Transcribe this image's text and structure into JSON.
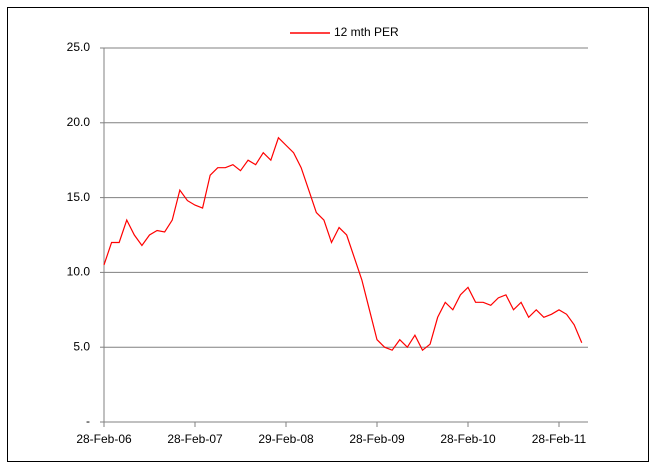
{
  "chart_data": {
    "type": "line",
    "categories": [
      "28-Feb-06",
      null,
      null,
      null,
      null,
      null,
      null,
      null,
      null,
      null,
      null,
      null,
      "28-Feb-07",
      null,
      null,
      null,
      null,
      null,
      null,
      null,
      null,
      null,
      null,
      null,
      "29-Feb-08",
      null,
      null,
      null,
      null,
      null,
      null,
      null,
      null,
      null,
      null,
      null,
      "28-Feb-09",
      null,
      null,
      null,
      null,
      null,
      null,
      null,
      null,
      null,
      null,
      null,
      "28-Feb-10",
      null,
      null,
      null,
      null,
      null,
      null,
      null,
      null,
      null,
      null,
      null,
      "28-Feb-11",
      null,
      null,
      null
    ],
    "series": [
      {
        "name": "12 mth PER",
        "color": "#ff0000",
        "values": [
          10.5,
          12,
          12,
          13.5,
          12.5,
          11.8,
          12.5,
          12.8,
          12.7,
          13.5,
          15.5,
          14.8,
          14.5,
          14.3,
          16.5,
          17,
          17,
          17.2,
          16.8,
          17.5,
          17.2,
          18,
          17.5,
          19,
          18.5,
          18,
          17,
          15.5,
          14,
          13.5,
          12,
          13,
          12.5,
          11,
          9.5,
          7.5,
          5.5,
          5,
          4.8,
          5.5,
          5,
          5.8,
          4.8,
          5.2,
          7,
          8,
          7.5,
          8.5,
          9,
          8,
          8,
          7.8,
          8.3,
          8.5,
          7.5,
          8,
          7,
          7.5,
          7,
          7.2,
          7.5,
          7.2,
          6.5,
          5.3
        ]
      }
    ],
    "ylim": [
      0,
      25
    ],
    "yticks": [
      {
        "value": 0,
        "label": "-"
      },
      {
        "value": 5,
        "label": "5.0"
      },
      {
        "value": 10,
        "label": "10.0"
      },
      {
        "value": 15,
        "label": "15.0"
      },
      {
        "value": 20,
        "label": "20.0"
      },
      {
        "value": 25,
        "label": "25.0"
      }
    ],
    "grid": true,
    "legend": "top"
  }
}
